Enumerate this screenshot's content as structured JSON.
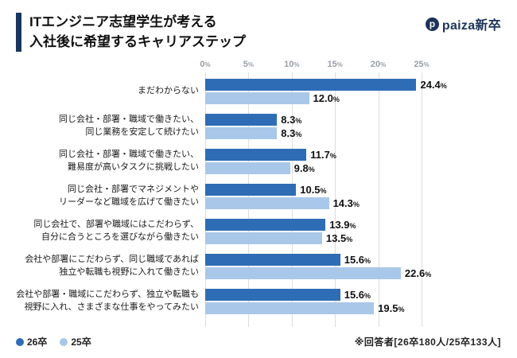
{
  "header": {
    "title_line1": "ITエンジニア志望学生が考える",
    "title_line2": "入社後に希望するキャリアステップ",
    "logo_text": "paiza新卒",
    "logo_mark": "p"
  },
  "footnote": "※回答者[26卒180人/25卒133人]",
  "colors": {
    "accent": "#16355f",
    "series1": "#2e6db5",
    "series2": "#a9c7e8",
    "gridline": "#d9dde3"
  },
  "chart_data": {
    "type": "bar",
    "orientation": "horizontal",
    "title": "ITエンジニア志望学生が考える入社後に希望するキャリアステップ",
    "xlabel": "",
    "ylabel": "",
    "xlim": [
      0,
      25
    ],
    "ticks": [
      0,
      5,
      10,
      15,
      20,
      25
    ],
    "tick_labels": [
      "0%",
      "5%",
      "10%",
      "15%",
      "20%",
      "25%"
    ],
    "grid": true,
    "legend_position": "bottom-left",
    "categories": [
      "まだわからない",
      "同じ会社・部署・職域で働きたい、\n同じ業務を安定して続けたい",
      "同じ会社・部署・職域で働きたい、\n難易度が高いタスクに挑戦したい",
      "同じ会社・部署でマネジメントや\nリーダーなど職域を広げて働きたい",
      "同じ会社で、部署や職域にはこだわらず、\n自分に合うところを選びながら働きたい",
      "会社や部署にこだわらず、同じ職域であれば\n独立や転職も視野に入れて働きたい",
      "会社や部署・職域にこだわらず、独立や転職も\n視野に入れ、さまざまな仕事をやってみたい"
    ],
    "series": [
      {
        "name": "26卒",
        "color": "#2e6db5",
        "values": [
          24.4,
          8.3,
          11.7,
          10.5,
          13.9,
          15.6,
          15.6
        ],
        "labels": [
          "24.4",
          "8.3",
          "11.7",
          "10.5",
          "13.9",
          "15.6",
          "15.6"
        ]
      },
      {
        "name": "25卒",
        "color": "#a9c7e8",
        "values": [
          12.0,
          8.3,
          9.8,
          14.3,
          13.5,
          22.6,
          19.5
        ],
        "labels": [
          "12.0",
          "8.3",
          "9.8",
          "14.3",
          "13.5",
          "22.6",
          "19.5"
        ]
      }
    ]
  }
}
